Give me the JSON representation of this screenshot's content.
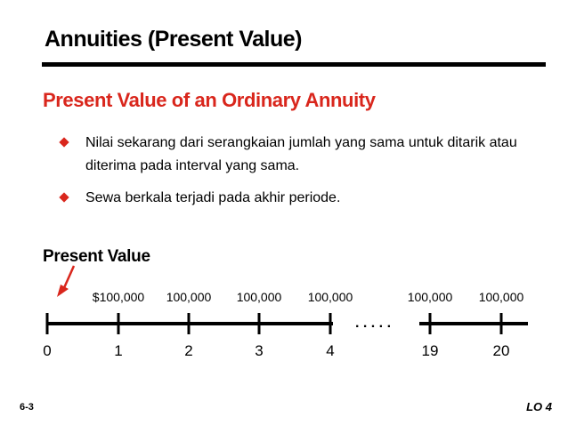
{
  "title": "Annuities (Present Value)",
  "subtitle": "Present Value of an Ordinary Annuity",
  "bullets": [
    "Nilai sekarang dari serangkaian jumlah yang sama untuk ditarik atau diterima pada interval yang sama.",
    "Sewa berkala terjadi pada akhir periode."
  ],
  "diagram": {
    "label": "Present Value",
    "periods": [
      "0",
      "1",
      "2",
      "3",
      "4",
      "19",
      "20"
    ],
    "amounts": [
      "$100,000",
      "100,000",
      "100,000",
      "100,000",
      "100,000",
      "100,000"
    ],
    "ellipsis": ". . . . .",
    "line_color": "#000000",
    "arrow_color": "#d9261c"
  },
  "footer": {
    "slide_number": "6-3",
    "learning_objective": "LO 4"
  },
  "colors": {
    "accent": "#d9261c",
    "text": "#000000",
    "background": "#ffffff"
  }
}
